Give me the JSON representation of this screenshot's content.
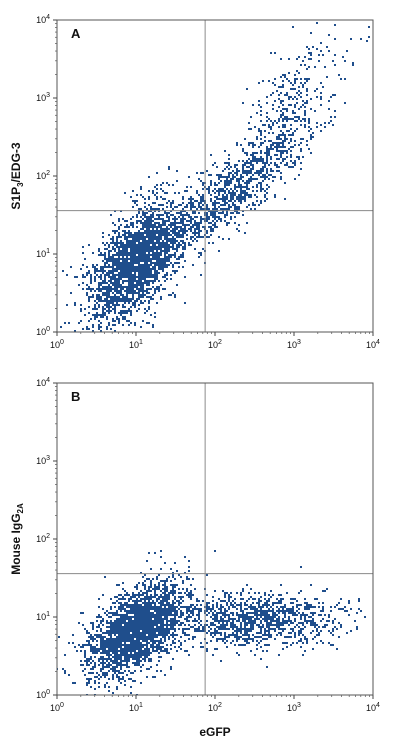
{
  "chart_data": [
    {
      "type": "scatter",
      "panel_label": "A",
      "ylabel_main": "S1P",
      "ylabel_sub": "3",
      "ylabel_rest": "/EDG-3",
      "xlabel": "",
      "scale": "log",
      "xlim": [
        1,
        10000
      ],
      "ylim": [
        1,
        10000
      ],
      "x_ticks": [
        {
          "v": 1,
          "b": "10",
          "e": "0"
        },
        {
          "v": 10,
          "b": "10",
          "e": "1"
        },
        {
          "v": 100,
          "b": "10",
          "e": "2"
        },
        {
          "v": 1000,
          "b": "10",
          "e": "3"
        },
        {
          "v": 10000,
          "b": "10",
          "e": "4"
        }
      ],
      "y_ticks": [
        {
          "v": 1,
          "b": "10",
          "e": "0"
        },
        {
          "v": 10,
          "b": "10",
          "e": "1"
        },
        {
          "v": 100,
          "b": "10",
          "e": "2"
        },
        {
          "v": 1000,
          "b": "10",
          "e": "3"
        },
        {
          "v": 10000,
          "b": "10",
          "e": "4"
        }
      ],
      "quadrant_gate": {
        "x": 75,
        "y": 36
      },
      "point_color": "#1f4e8c",
      "grid": false,
      "point_clusters": [
        {
          "cx": 10,
          "cy": 8,
          "sx": 0.3,
          "sy": 0.38,
          "n": 2600,
          "rho": 0.55
        },
        {
          "cx": 150,
          "cy": 60,
          "sx": 0.45,
          "sy": 0.4,
          "n": 1000,
          "rho": 0.85
        },
        {
          "cx": 900,
          "cy": 700,
          "sx": 0.35,
          "sy": 0.45,
          "n": 350,
          "rho": 0.7
        }
      ]
    },
    {
      "type": "scatter",
      "panel_label": "B",
      "ylabel_main": "Mouse IgG",
      "ylabel_sub": "2A",
      "ylabel_rest": "",
      "xlabel": "eGFP",
      "scale": "log",
      "xlim": [
        1,
        10000
      ],
      "ylim": [
        1,
        10000
      ],
      "x_ticks": [
        {
          "v": 1,
          "b": "10",
          "e": "0"
        },
        {
          "v": 10,
          "b": "10",
          "e": "1"
        },
        {
          "v": 100,
          "b": "10",
          "e": "2"
        },
        {
          "v": 1000,
          "b": "10",
          "e": "3"
        },
        {
          "v": 10000,
          "b": "10",
          "e": "4"
        }
      ],
      "y_ticks": [
        {
          "v": 1,
          "b": "10",
          "e": "0"
        },
        {
          "v": 10,
          "b": "10",
          "e": "1"
        },
        {
          "v": 100,
          "b": "10",
          "e": "2"
        },
        {
          "v": 1000,
          "b": "10",
          "e": "3"
        },
        {
          "v": 10000,
          "b": "10",
          "e": "4"
        }
      ],
      "quadrant_gate": {
        "x": 75,
        "y": 36
      },
      "point_color": "#1f4e8c",
      "grid": false,
      "point_clusters": [
        {
          "cx": 10,
          "cy": 7,
          "sx": 0.3,
          "sy": 0.3,
          "n": 2600,
          "rho": 0.5
        },
        {
          "cx": 300,
          "cy": 9,
          "sx": 0.55,
          "sy": 0.17,
          "n": 1200,
          "rho": 0.05
        }
      ]
    }
  ]
}
